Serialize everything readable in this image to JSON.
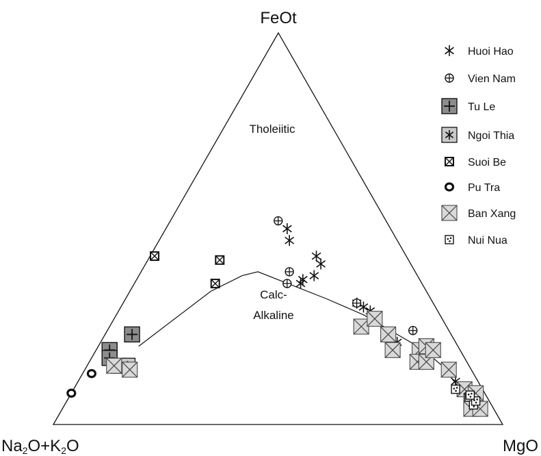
{
  "chart_data": {
    "type": "scatter",
    "subtype": "ternary AFM diagram",
    "apices": {
      "top": "FeOt",
      "left_parts": [
        "Na",
        "2",
        "O+K",
        "2",
        "O"
      ],
      "right": "MgO"
    },
    "regions": {
      "upper": "Tholeiitic",
      "lower_line1": "Calc-",
      "lower_line2": "Alkaline"
    },
    "boundary_line": [
      [
        0.71,
        0.2,
        0.09
      ],
      [
        0.48,
        0.34,
        0.18
      ],
      [
        0.39,
        0.38,
        0.23
      ],
      [
        0.35,
        0.39,
        0.26
      ],
      [
        0.23,
        0.32,
        0.45
      ],
      [
        0.17,
        0.28,
        0.55
      ],
      [
        0.12,
        0.23,
        0.65
      ],
      [
        0.08,
        0.19,
        0.73
      ],
      [
        0.06,
        0.15,
        0.79
      ],
      [
        0.05,
        0.09,
        0.86
      ],
      [
        0.035,
        0.05,
        0.915
      ]
    ],
    "series": [
      {
        "name": "Huoi Hao",
        "marker": "asterisk",
        "points": [
          [
            0.23,
            0.5,
            0.27
          ],
          [
            0.24,
            0.47,
            0.29
          ],
          [
            0.2,
            0.43,
            0.37
          ],
          [
            0.2,
            0.41,
            0.39
          ],
          [
            0.23,
            0.38,
            0.39
          ],
          [
            0.26,
            0.37,
            0.37
          ],
          [
            0.27,
            0.36,
            0.37
          ],
          [
            0.17,
            0.31,
            0.52
          ],
          [
            0.16,
            0.3,
            0.54
          ],
          [
            0.15,
            0.29,
            0.56
          ],
          [
            0.13,
            0.21,
            0.66
          ],
          [
            0.05,
            0.11,
            0.84
          ],
          [
            0.04,
            0.09,
            0.87
          ],
          [
            0.03,
            0.08,
            0.89
          ]
        ]
      },
      {
        "name": "Vien Nam",
        "marker": "circle-plus",
        "points": [
          [
            0.24,
            0.52,
            0.24
          ],
          [
            0.28,
            0.39,
            0.33
          ],
          [
            0.3,
            0.36,
            0.34
          ],
          [
            0.17,
            0.31,
            0.52
          ],
          [
            0.08,
            0.24,
            0.68
          ],
          [
            0.04,
            0.09,
            0.87
          ]
        ]
      },
      {
        "name": "Tu Le",
        "marker": "square-plus",
        "points": [
          [
            0.71,
            0.23,
            0.06
          ],
          [
            0.78,
            0.19,
            0.03
          ],
          [
            0.79,
            0.17,
            0.04
          ]
        ]
      },
      {
        "name": "Ngoi Thia",
        "marker": "square-asterisk",
        "points": [
          [
            0.78,
            0.15,
            0.07
          ],
          [
            0.76,
            0.15,
            0.09
          ]
        ]
      },
      {
        "name": "Suoi Be",
        "marker": "square-x-small",
        "points": [
          [
            0.56,
            0.43,
            0.01
          ],
          [
            0.42,
            0.42,
            0.16
          ],
          [
            0.46,
            0.36,
            0.18
          ]
        ]
      },
      {
        "name": "Pu Tra",
        "marker": "ring",
        "points": [
          [
            0.85,
            0.13,
            0.02
          ],
          [
            0.92,
            0.08,
            0.0
          ]
        ]
      },
      {
        "name": "Ban Xang",
        "marker": "square-x",
        "points": [
          [
            0.79,
            0.15,
            0.06
          ],
          [
            0.76,
            0.14,
            0.1
          ],
          [
            0.19,
            0.25,
            0.56
          ],
          [
            0.15,
            0.27,
            0.58
          ],
          [
            0.14,
            0.23,
            0.63
          ],
          [
            0.15,
            0.19,
            0.66
          ],
          [
            0.09,
            0.19,
            0.72
          ],
          [
            0.07,
            0.2,
            0.73
          ],
          [
            0.11,
            0.16,
            0.73
          ],
          [
            0.09,
            0.16,
            0.75
          ],
          [
            0.06,
            0.19,
            0.75
          ],
          [
            0.05,
            0.14,
            0.81
          ],
          [
            0.04,
            0.09,
            0.87
          ],
          [
            0.04,
            0.06,
            0.9
          ],
          [
            0.05,
            0.04,
            0.91
          ],
          [
            0.03,
            0.04,
            0.93
          ],
          [
            0.02,
            0.08,
            0.9
          ]
        ]
      },
      {
        "name": "Nui Nua",
        "marker": "square-dots",
        "points": [
          [
            0.06,
            0.09,
            0.85
          ],
          [
            0.04,
            0.07,
            0.89
          ],
          [
            0.04,
            0.05,
            0.91
          ],
          [
            0.03,
            0.06,
            0.91
          ],
          [
            0.035,
            0.075,
            0.89
          ]
        ]
      }
    ],
    "legend": {
      "position": "top-right"
    },
    "grid": false,
    "colors": {
      "line": "#111111",
      "large_marker_fill": "#d9d9d9",
      "tu_le_fill": "#8c8c8c",
      "ngoi_thia_fill": "#c8c8c8"
    }
  }
}
